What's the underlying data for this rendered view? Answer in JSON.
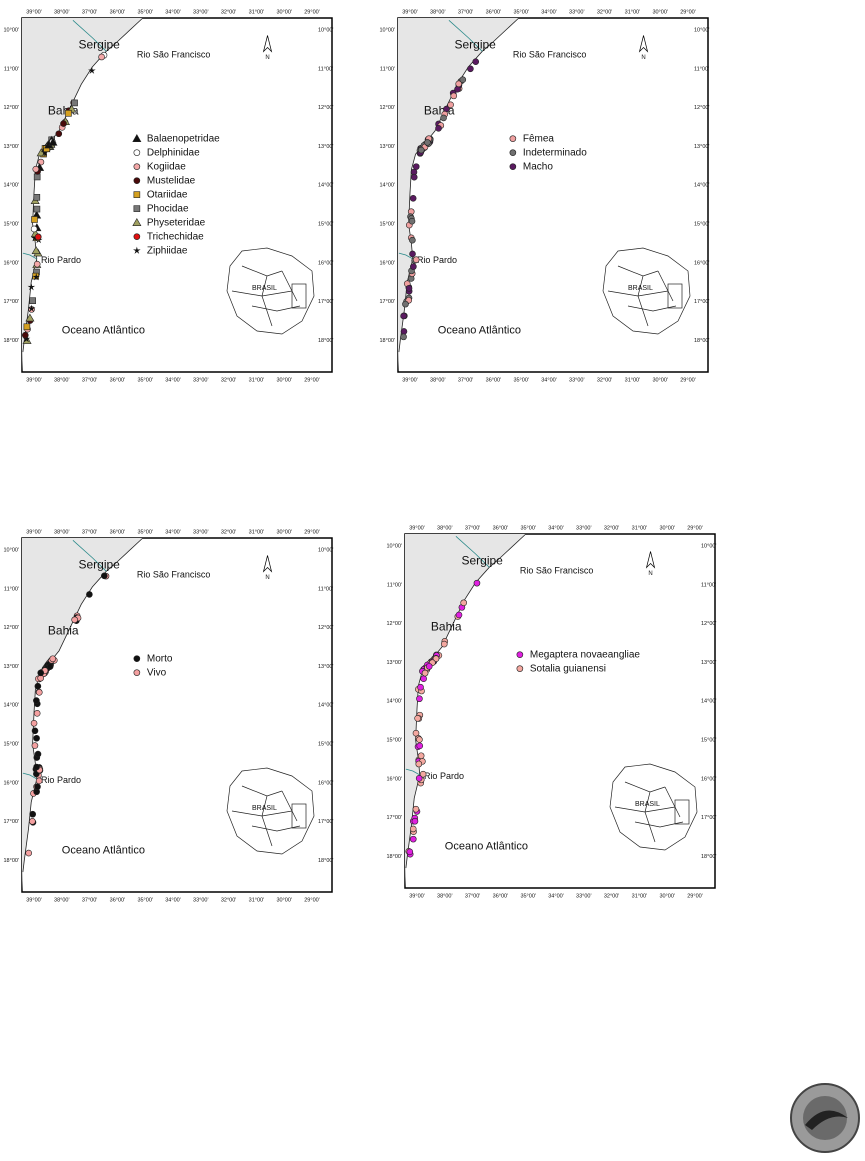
{
  "lon_labels": [
    "39°00'",
    "38°00'",
    "37°00'",
    "36°00'",
    "35°00'",
    "34°00'",
    "33°00'",
    "32°00'",
    "31°00'",
    "30°00'",
    "29°00'"
  ],
  "lat_labels": [
    "10°00'",
    "11°00'",
    "12°00'",
    "13°00'",
    "14°00'",
    "15°00'",
    "16°00'",
    "17°00'",
    "18°00'"
  ],
  "places": {
    "state": "Sergipe",
    "river_north": "Rio São Francisco",
    "region": "Bahia",
    "river_south": "Rio Pardo",
    "ocean": "Oceano Atlântico",
    "inset": "BRASIL",
    "north": "N"
  },
  "maps": [
    {
      "legend": [
        "Balaenopetridae",
        "Delphinidae",
        "Kogiidae",
        "Mustelidae",
        "Otariidae",
        "Phocidae",
        "Physeteridae",
        "Trichechidae",
        "Ziphiidae"
      ]
    },
    {
      "legend": [
        "Fêmea",
        "Indeterminado",
        "Macho"
      ]
    },
    {
      "legend": [
        "Morto",
        "Vivo"
      ]
    },
    {
      "legend": [
        "Megaptera novaeangliae",
        "Sotalia guianensi"
      ]
    }
  ]
}
